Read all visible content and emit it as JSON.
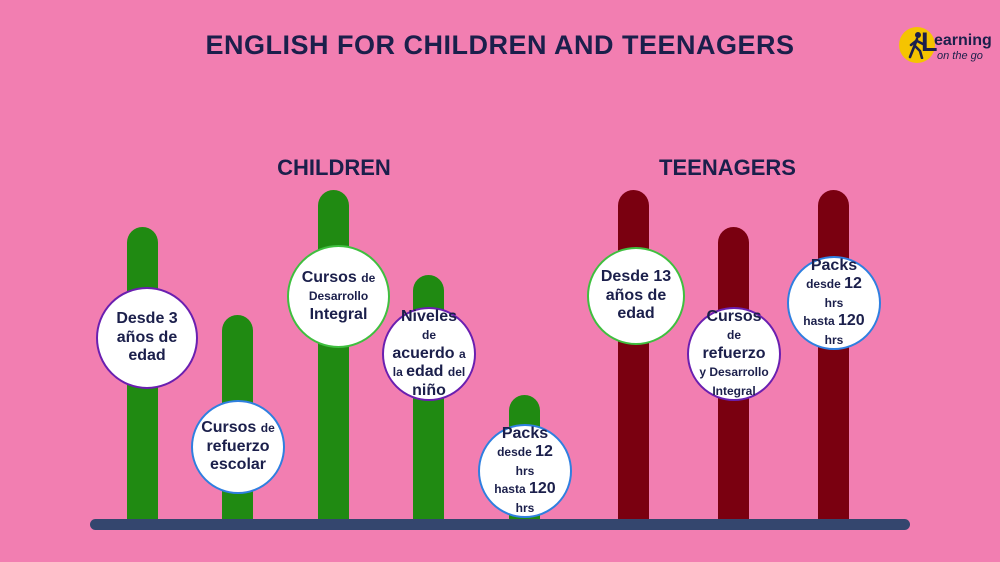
{
  "title": "ENGLISH FOR CHILDREN AND TEENAGERS",
  "logo": {
    "initial": "L",
    "word": "earning",
    "tagline": "on the go"
  },
  "groups": {
    "children": "CHILDREN",
    "teenagers": "TEENAGERS"
  },
  "colors": {
    "background": "#f27eb1",
    "children_pillar": "#208a12",
    "teenagers_pillar": "#7a0010",
    "base": "#34466e",
    "text": "#1b1f4b"
  },
  "items": [
    {
      "group": "children",
      "lines": [
        [
          {
            "t": "Desde 3",
            "s": "b"
          }
        ],
        [
          {
            "t": "años de",
            "s": "b"
          }
        ],
        [
          {
            "t": "edad",
            "s": "b"
          }
        ]
      ],
      "border": "#6a1fb0"
    },
    {
      "group": "children",
      "lines": [
        [
          {
            "t": "Cursos ",
            "s": "b"
          },
          {
            "t": "de",
            "s": "s"
          }
        ],
        [
          {
            "t": "refuerzo",
            "s": "b"
          }
        ],
        [
          {
            "t": "escolar",
            "s": "b"
          }
        ]
      ],
      "border": "#2f7fe0"
    },
    {
      "group": "children",
      "lines": [
        [
          {
            "t": "Cursos ",
            "s": "b"
          },
          {
            "t": "de",
            "s": "s"
          }
        ],
        [
          {
            "t": "Desarrollo",
            "s": "s"
          }
        ],
        [
          {
            "t": "Integral",
            "s": "b"
          }
        ]
      ],
      "border": "#3fbf3f"
    },
    {
      "group": "children",
      "lines": [
        [
          {
            "t": "Niveles",
            "s": "b"
          }
        ],
        [
          {
            "t": "de ",
            "s": "s"
          },
          {
            "t": "acuerdo ",
            "s": "b"
          },
          {
            "t": "a",
            "s": "s"
          }
        ],
        [
          {
            "t": "la ",
            "s": "s"
          },
          {
            "t": "edad ",
            "s": "b"
          },
          {
            "t": "del",
            "s": "s"
          }
        ],
        [
          {
            "t": "niño",
            "s": "b"
          }
        ]
      ],
      "border": "#6a1fb0"
    },
    {
      "group": "children",
      "lines": [
        [
          {
            "t": "Packs",
            "s": "b"
          }
        ],
        [
          {
            "t": "desde ",
            "s": "s"
          },
          {
            "t": "12 ",
            "s": "b"
          },
          {
            "t": "hrs",
            "s": "s"
          }
        ],
        [
          {
            "t": "hasta ",
            "s": "s"
          },
          {
            "t": "120",
            "s": "b"
          }
        ],
        [
          {
            "t": "hrs",
            "s": "s"
          }
        ]
      ],
      "border": "#2f7fe0"
    },
    {
      "group": "teenagers",
      "lines": [
        [
          {
            "t": "Desde 13",
            "s": "b"
          }
        ],
        [
          {
            "t": "años de",
            "s": "b"
          }
        ],
        [
          {
            "t": "edad",
            "s": "b"
          }
        ]
      ],
      "border": "#3fbf3f"
    },
    {
      "group": "teenagers",
      "lines": [
        [
          {
            "t": "Cursos",
            "s": "b"
          }
        ],
        [
          {
            "t": "de ",
            "s": "s"
          },
          {
            "t": "refuerzo",
            "s": "b"
          }
        ],
        [
          {
            "t": "y Desarrollo",
            "s": "s"
          }
        ],
        [
          {
            "t": "Integral",
            "s": "s"
          }
        ]
      ],
      "border": "#6a1fb0"
    },
    {
      "group": "teenagers",
      "lines": [
        [
          {
            "t": "Packs",
            "s": "b"
          }
        ],
        [
          {
            "t": "desde ",
            "s": "s"
          },
          {
            "t": "12 ",
            "s": "b"
          },
          {
            "t": "hrs",
            "s": "s"
          }
        ],
        [
          {
            "t": "hasta ",
            "s": "s"
          },
          {
            "t": "120",
            "s": "b"
          }
        ],
        [
          {
            "t": "hrs",
            "s": "s"
          }
        ]
      ],
      "border": "#2f7fe0"
    }
  ]
}
